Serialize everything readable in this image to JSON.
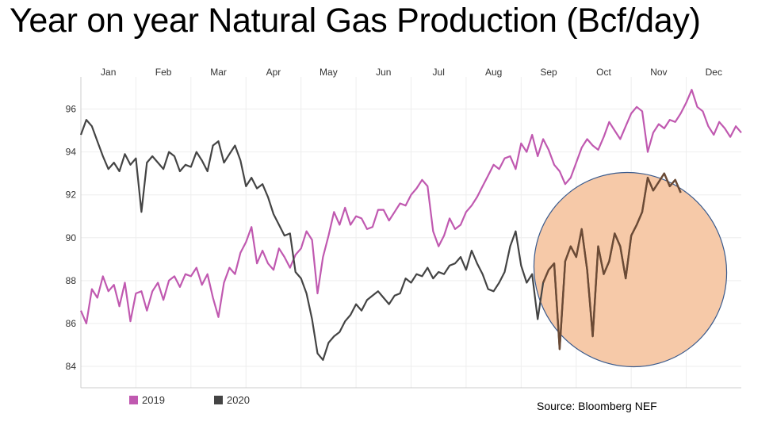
{
  "title": "Year on year Natural Gas Production (Bcf/day)",
  "source": "Source: Bloomberg NEF",
  "colors": {
    "series_2019": "#c059b0",
    "series_2020": "#444444",
    "series_2020_highlight": "#6b4a35",
    "ellipse_fill": "#f6c9a8",
    "ellipse_stroke": "#3a5a8c",
    "grid": "#eeeeee",
    "axis_text": "#333333"
  },
  "chart_data": {
    "type": "line",
    "title": "Year on year Natural Gas Production (Bcf/day)",
    "xlabel": "",
    "ylabel": "",
    "x_tick_labels": [
      "Jan",
      "Feb",
      "Mar",
      "Apr",
      "May",
      "Jun",
      "Jul",
      "Aug",
      "Sep",
      "Oct",
      "Nov",
      "Dec"
    ],
    "y_ticks": [
      84,
      86,
      88,
      90,
      92,
      94,
      96
    ],
    "ylim": [
      83,
      97.5
    ],
    "xlim": [
      0,
      12
    ],
    "grid": true,
    "legend_position": "bottom-left",
    "annotation": "ellipse highlighting Sep–Nov 2020",
    "series": [
      {
        "name": "2019",
        "color": "#c059b0",
        "x": [
          0,
          0.1,
          0.2,
          0.3,
          0.4,
          0.5,
          0.6,
          0.7,
          0.8,
          0.9,
          1,
          1.1,
          1.2,
          1.3,
          1.4,
          1.5,
          1.6,
          1.7,
          1.8,
          1.9,
          2,
          2.1,
          2.2,
          2.3,
          2.4,
          2.5,
          2.6,
          2.7,
          2.8,
          2.9,
          3,
          3.1,
          3.2,
          3.3,
          3.4,
          3.5,
          3.6,
          3.7,
          3.8,
          3.9,
          4,
          4.1,
          4.2,
          4.3,
          4.4,
          4.5,
          4.6,
          4.7,
          4.8,
          4.9,
          5,
          5.1,
          5.2,
          5.3,
          5.4,
          5.5,
          5.6,
          5.7,
          5.8,
          5.9,
          6,
          6.1,
          6.2,
          6.3,
          6.4,
          6.5,
          6.6,
          6.7,
          6.8,
          6.9,
          7,
          7.1,
          7.2,
          7.3,
          7.4,
          7.5,
          7.6,
          7.7,
          7.8,
          7.9,
          8,
          8.1,
          8.2,
          8.3,
          8.4,
          8.5,
          8.6,
          8.7,
          8.8,
          8.9,
          9,
          9.1,
          9.2,
          9.3,
          9.4,
          9.5,
          9.6,
          9.7,
          9.8,
          9.9,
          10,
          10.1,
          10.2,
          10.3,
          10.4,
          10.5,
          10.6,
          10.7,
          10.8,
          10.9,
          11,
          11.1,
          11.2,
          11.3,
          11.4,
          11.5,
          11.6,
          11.7,
          11.8,
          11.9,
          12
        ],
        "y": [
          86.6,
          86,
          87.6,
          87.2,
          88.2,
          87.5,
          87.8,
          86.8,
          87.9,
          86.1,
          87.4,
          87.5,
          86.6,
          87.5,
          87.9,
          87.1,
          88,
          88.2,
          87.7,
          88.3,
          88.2,
          88.6,
          87.8,
          88.3,
          87.2,
          86.3,
          87.9,
          88.6,
          88.3,
          89.3,
          89.8,
          90.5,
          88.8,
          89.4,
          88.8,
          88.5,
          89.5,
          89.1,
          88.6,
          89.2,
          89.5,
          90.3,
          89.9,
          87.4,
          89.1,
          90.1,
          91.2,
          90.6,
          91.4,
          90.6,
          91,
          90.9,
          90.4,
          90.5,
          91.3,
          91.3,
          90.8,
          91.2,
          91.6,
          91.5,
          92,
          92.3,
          92.7,
          92.4,
          90.3,
          89.6,
          90.1,
          90.9,
          90.4,
          90.6,
          91.2,
          91.5,
          91.9,
          92.4,
          92.9,
          93.4,
          93.2,
          93.7,
          93.8,
          93.2,
          94.4,
          94,
          94.8,
          93.8,
          94.6,
          94.1,
          93.4,
          93.1,
          92.5,
          92.8,
          93.5,
          94.2,
          94.6,
          94.3,
          94.1,
          94.7,
          95.4,
          95,
          94.6,
          95.2,
          95.8,
          96.1,
          95.9,
          94,
          94.9,
          95.3,
          95.1,
          95.5,
          95.4,
          95.8,
          96.3,
          96.9,
          96.1,
          95.9,
          95.2,
          94.8,
          95.4,
          95.1,
          94.7,
          95.2,
          94.9
        ]
      },
      {
        "name": "2020",
        "color": "#444444",
        "x": [
          0,
          0.1,
          0.2,
          0.3,
          0.4,
          0.5,
          0.6,
          0.7,
          0.8,
          0.9,
          1,
          1.1,
          1.2,
          1.3,
          1.4,
          1.5,
          1.6,
          1.7,
          1.8,
          1.9,
          2,
          2.1,
          2.2,
          2.3,
          2.4,
          2.5,
          2.6,
          2.7,
          2.8,
          2.9,
          3,
          3.1,
          3.2,
          3.3,
          3.4,
          3.5,
          3.6,
          3.7,
          3.8,
          3.9,
          4,
          4.1,
          4.2,
          4.3,
          4.4,
          4.5,
          4.6,
          4.7,
          4.8,
          4.9,
          5,
          5.1,
          5.2,
          5.3,
          5.4,
          5.5,
          5.6,
          5.7,
          5.8,
          5.9,
          6,
          6.1,
          6.2,
          6.3,
          6.4,
          6.5,
          6.6,
          6.7,
          6.8,
          6.9,
          7,
          7.1,
          7.2,
          7.3,
          7.4,
          7.5,
          7.6,
          7.7,
          7.8,
          7.9,
          8,
          8.1,
          8.2,
          8.3,
          8.4,
          8.5,
          8.6,
          8.7,
          8.8,
          8.9,
          9,
          9.1,
          9.2,
          9.3,
          9.4,
          9.5,
          9.6,
          9.7,
          9.8,
          9.9,
          10,
          10.1,
          10.2,
          10.3,
          10.4,
          10.5,
          10.6,
          10.7,
          10.8,
          10.9
        ],
        "y": [
          94.8,
          95.5,
          95.2,
          94.5,
          93.8,
          93.2,
          93.5,
          93.1,
          93.9,
          93.4,
          93.7,
          91.2,
          93.5,
          93.8,
          93.5,
          93.2,
          94,
          93.8,
          93.1,
          93.4,
          93.3,
          94,
          93.6,
          93.1,
          94.3,
          94.5,
          93.5,
          93.9,
          94.3,
          93.6,
          92.4,
          92.8,
          92.3,
          92.5,
          91.9,
          91.1,
          90.6,
          90.1,
          90.2,
          88.4,
          88.1,
          87.4,
          86.2,
          84.6,
          84.3,
          85.1,
          85.4,
          85.6,
          86.1,
          86.4,
          86.9,
          86.6,
          87.1,
          87.3,
          87.5,
          87.2,
          86.9,
          87.3,
          87.4,
          88.1,
          87.9,
          88.3,
          88.2,
          88.6,
          88.1,
          88.4,
          88.3,
          88.7,
          88.8,
          89.1,
          88.5,
          89.4,
          88.8,
          88.3,
          87.6,
          87.5,
          87.9,
          88.4,
          89.6,
          90.3,
          88.7,
          87.9,
          88.3,
          86.2,
          87.9,
          88.5,
          88.8,
          84.8,
          88.9,
          89.6,
          89.1,
          90.4,
          88.5,
          85.4,
          89.6,
          88.3,
          88.9,
          90.2,
          89.6,
          88.1,
          90.1,
          90.6,
          91.2,
          92.8,
          92.2,
          92.6,
          93,
          92.4,
          92.7,
          92.1
        ]
      }
    ]
  }
}
